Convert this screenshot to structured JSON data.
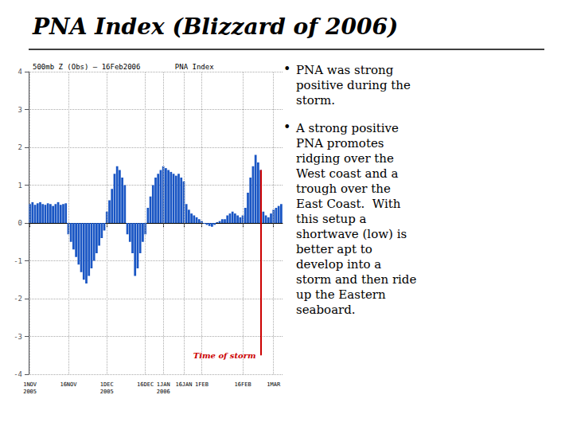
{
  "chart_data": {
    "type": "bar",
    "title": "PNA Index (Blizzard of 2006)",
    "subtitle": "500mb Z (Obs) – 16Feb2006        PNA Index",
    "color": "#1a56c4",
    "categories": [
      "1NOV\n2005",
      null,
      null,
      null,
      null,
      null,
      null,
      null,
      null,
      null,
      null,
      null,
      null,
      null,
      null,
      "16NOV",
      null,
      null,
      null,
      null,
      null,
      null,
      null,
      null,
      null,
      null,
      null,
      null,
      null,
      null,
      "1DEC\n2005",
      null,
      null,
      null,
      null,
      null,
      null,
      null,
      null,
      null,
      null,
      null,
      null,
      null,
      null,
      "16DEC",
      null,
      null,
      null,
      null,
      null,
      null,
      "1JAN\n2006",
      null,
      null,
      null,
      null,
      null,
      null,
      null,
      "16JAN",
      null,
      null,
      null,
      null,
      null,
      null,
      "1FEB",
      null,
      null,
      null,
      null,
      null,
      null,
      null,
      null,
      null,
      null,
      null,
      null,
      null,
      null,
      null,
      "16FEB",
      null,
      null,
      null,
      null,
      null,
      null,
      null,
      null,
      null,
      null,
      null,
      "1MAR",
      null,
      null,
      null
    ],
    "values": [
      0.5,
      0.55,
      0.48,
      0.52,
      0.55,
      0.5,
      0.48,
      0.52,
      0.5,
      0.45,
      0.5,
      0.55,
      0.48,
      0.5,
      0.52,
      -0.3,
      -0.5,
      -0.7,
      -0.9,
      -1.1,
      -1.3,
      -1.5,
      -1.6,
      -1.4,
      -1.2,
      -1.0,
      -0.8,
      -0.6,
      -0.4,
      -0.2,
      0.3,
      0.6,
      0.9,
      1.3,
      1.5,
      1.4,
      1.2,
      1.0,
      -0.3,
      -0.5,
      -0.8,
      -1.4,
      -1.2,
      -0.8,
      -0.5,
      -0.3,
      0.4,
      0.7,
      1.0,
      1.2,
      1.3,
      1.4,
      1.5,
      1.45,
      1.4,
      1.35,
      1.3,
      1.25,
      1.3,
      1.2,
      1.1,
      0.5,
      0.35,
      0.25,
      0.2,
      0.15,
      0.1,
      0.05,
      -0.02,
      -0.05,
      -0.08,
      -0.1,
      -0.05,
      0.02,
      0.05,
      0.1,
      0.1,
      0.2,
      0.25,
      0.3,
      0.25,
      0.2,
      0.15,
      0.2,
      0.4,
      0.8,
      1.2,
      1.5,
      1.8,
      1.6,
      1.4,
      0.3,
      0.2,
      0.15,
      0.25,
      0.35,
      0.4,
      0.45,
      0.5
    ],
    "ylim": [
      -4,
      4
    ],
    "yticks": [
      -4,
      -3,
      -2,
      -1,
      0,
      1,
      2,
      3,
      4
    ],
    "grid": true,
    "bullet": "•",
    "annotations": [
      {
        "type": "line",
        "text": "Time of storm",
        "x": 90,
        "y_from": -3.5,
        "y_to": 1.4,
        "color": "#cc0000"
      },
      {
        "type": "text",
        "text": "PNA was strong\npositive during the\nstorm."
      },
      {
        "type": "text",
        "text": "A strong positive\nPNA promotes\nridging over the\nWest coast and a\ntrough over the\nEast Coast.  With\nthis setup a\nshortwave (low) is\nbetter apt to\ndevelop into a\nstorm and then ride\nup the Eastern\nseaboard."
      }
    ]
  }
}
